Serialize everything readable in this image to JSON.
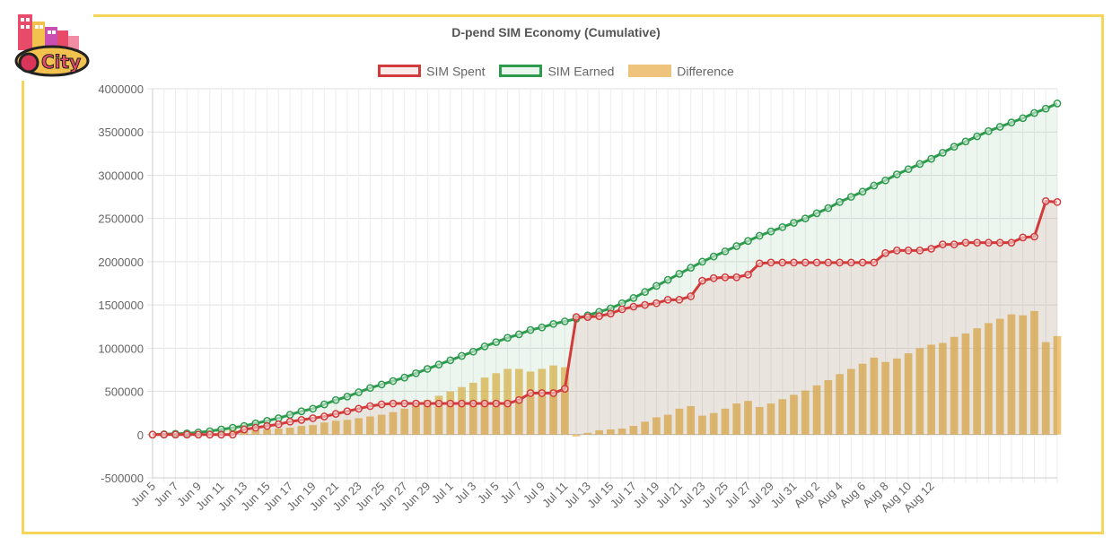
{
  "chart_data": {
    "type": "bar",
    "title": "D-pend SIM Economy (Cumulative)",
    "xlabel": "",
    "ylabel": "",
    "ylim": [
      -500000,
      4000000
    ],
    "y_ticks": [
      "4000000",
      "3500000",
      "3000000",
      "2500000",
      "2000000",
      "1500000",
      "1000000",
      "500000",
      "0",
      "-500000"
    ],
    "grid": true,
    "legend_position": "top",
    "x_tick_labels": [
      "Jun 5",
      "Jun 7",
      "Jun 9",
      "Jun 11",
      "Jun 13",
      "Jun 15",
      "Jun 17",
      "Jun 19",
      "Jun 21",
      "Jun 23",
      "Jun 25",
      "Jun 27",
      "Jun 29",
      "Jul 1",
      "Jul 3",
      "Jul 5",
      "Jul 7",
      "Jul 9",
      "Jul 11",
      "Jul 13",
      "Jul 15",
      "Jul 17",
      "Jul 19",
      "Jul 21",
      "Jul 23",
      "Jul 25",
      "Jul 27",
      "Jul 29",
      "Jul 31",
      "Aug 2",
      "Aug 4",
      "Aug 6",
      "Aug 8",
      "Aug 10",
      "Aug 12"
    ],
    "series": [
      {
        "name": "SIM Spent",
        "type": "line",
        "color": "#d13b3b",
        "values": [
          0,
          0,
          0,
          0,
          0,
          0,
          0,
          0,
          60000,
          80000,
          100000,
          120000,
          150000,
          170000,
          190000,
          210000,
          240000,
          270000,
          300000,
          330000,
          350000,
          360000,
          360000,
          360000,
          360000,
          360000,
          360000,
          360000,
          360000,
          360000,
          360000,
          360000,
          400000,
          480000,
          480000,
          480000,
          530000,
          1360000,
          1360000,
          1370000,
          1400000,
          1450000,
          1480000,
          1500000,
          1520000,
          1560000,
          1560000,
          1600000,
          1780000,
          1810000,
          1820000,
          1820000,
          1850000,
          1980000,
          1990000,
          1990000,
          1990000,
          1990000,
          1990000,
          1990000,
          1990000,
          1990000,
          1990000,
          1990000,
          2100000,
          2130000,
          2130000,
          2130000,
          2150000,
          2200000,
          2200000,
          2220000,
          2220000,
          2220000,
          2220000,
          2220000,
          2280000,
          2290000,
          2700000,
          2690000
        ]
      },
      {
        "name": "SIM Earned",
        "type": "line",
        "color": "#2e9a4e",
        "values": [
          0,
          5000,
          10000,
          15000,
          25000,
          40000,
          60000,
          80000,
          100000,
          130000,
          160000,
          190000,
          230000,
          270000,
          300000,
          350000,
          400000,
          440000,
          490000,
          540000,
          580000,
          620000,
          660000,
          710000,
          760000,
          810000,
          860000,
          910000,
          960000,
          1020000,
          1070000,
          1120000,
          1160000,
          1210000,
          1240000,
          1280000,
          1310000,
          1340000,
          1380000,
          1420000,
          1460000,
          1520000,
          1580000,
          1650000,
          1720000,
          1790000,
          1860000,
          1930000,
          2000000,
          2060000,
          2120000,
          2180000,
          2240000,
          2300000,
          2350000,
          2400000,
          2450000,
          2500000,
          2560000,
          2620000,
          2690000,
          2750000,
          2810000,
          2880000,
          2940000,
          3010000,
          3070000,
          3130000,
          3190000,
          3260000,
          3330000,
          3390000,
          3450000,
          3510000,
          3560000,
          3610000,
          3660000,
          3720000,
          3770000,
          3830000
        ]
      },
      {
        "name": "Difference",
        "type": "bar",
        "color": "#e8b34a",
        "values": [
          0,
          5000,
          10000,
          15000,
          25000,
          40000,
          60000,
          80000,
          40000,
          50000,
          60000,
          70000,
          80000,
          100000,
          110000,
          140000,
          160000,
          170000,
          190000,
          210000,
          230000,
          260000,
          300000,
          350000,
          400000,
          450000,
          500000,
          550000,
          600000,
          660000,
          710000,
          760000,
          760000,
          730000,
          760000,
          800000,
          780000,
          -20000,
          20000,
          50000,
          60000,
          70000,
          100000,
          150000,
          200000,
          230000,
          300000,
          330000,
          220000,
          250000,
          300000,
          360000,
          390000,
          320000,
          360000,
          410000,
          460000,
          510000,
          570000,
          630000,
          700000,
          760000,
          820000,
          890000,
          840000,
          880000,
          940000,
          1000000,
          1040000,
          1060000,
          1130000,
          1170000,
          1230000,
          1290000,
          1340000,
          1390000,
          1380000,
          1430000,
          1070000,
          1140000
        ]
      }
    ]
  }
}
